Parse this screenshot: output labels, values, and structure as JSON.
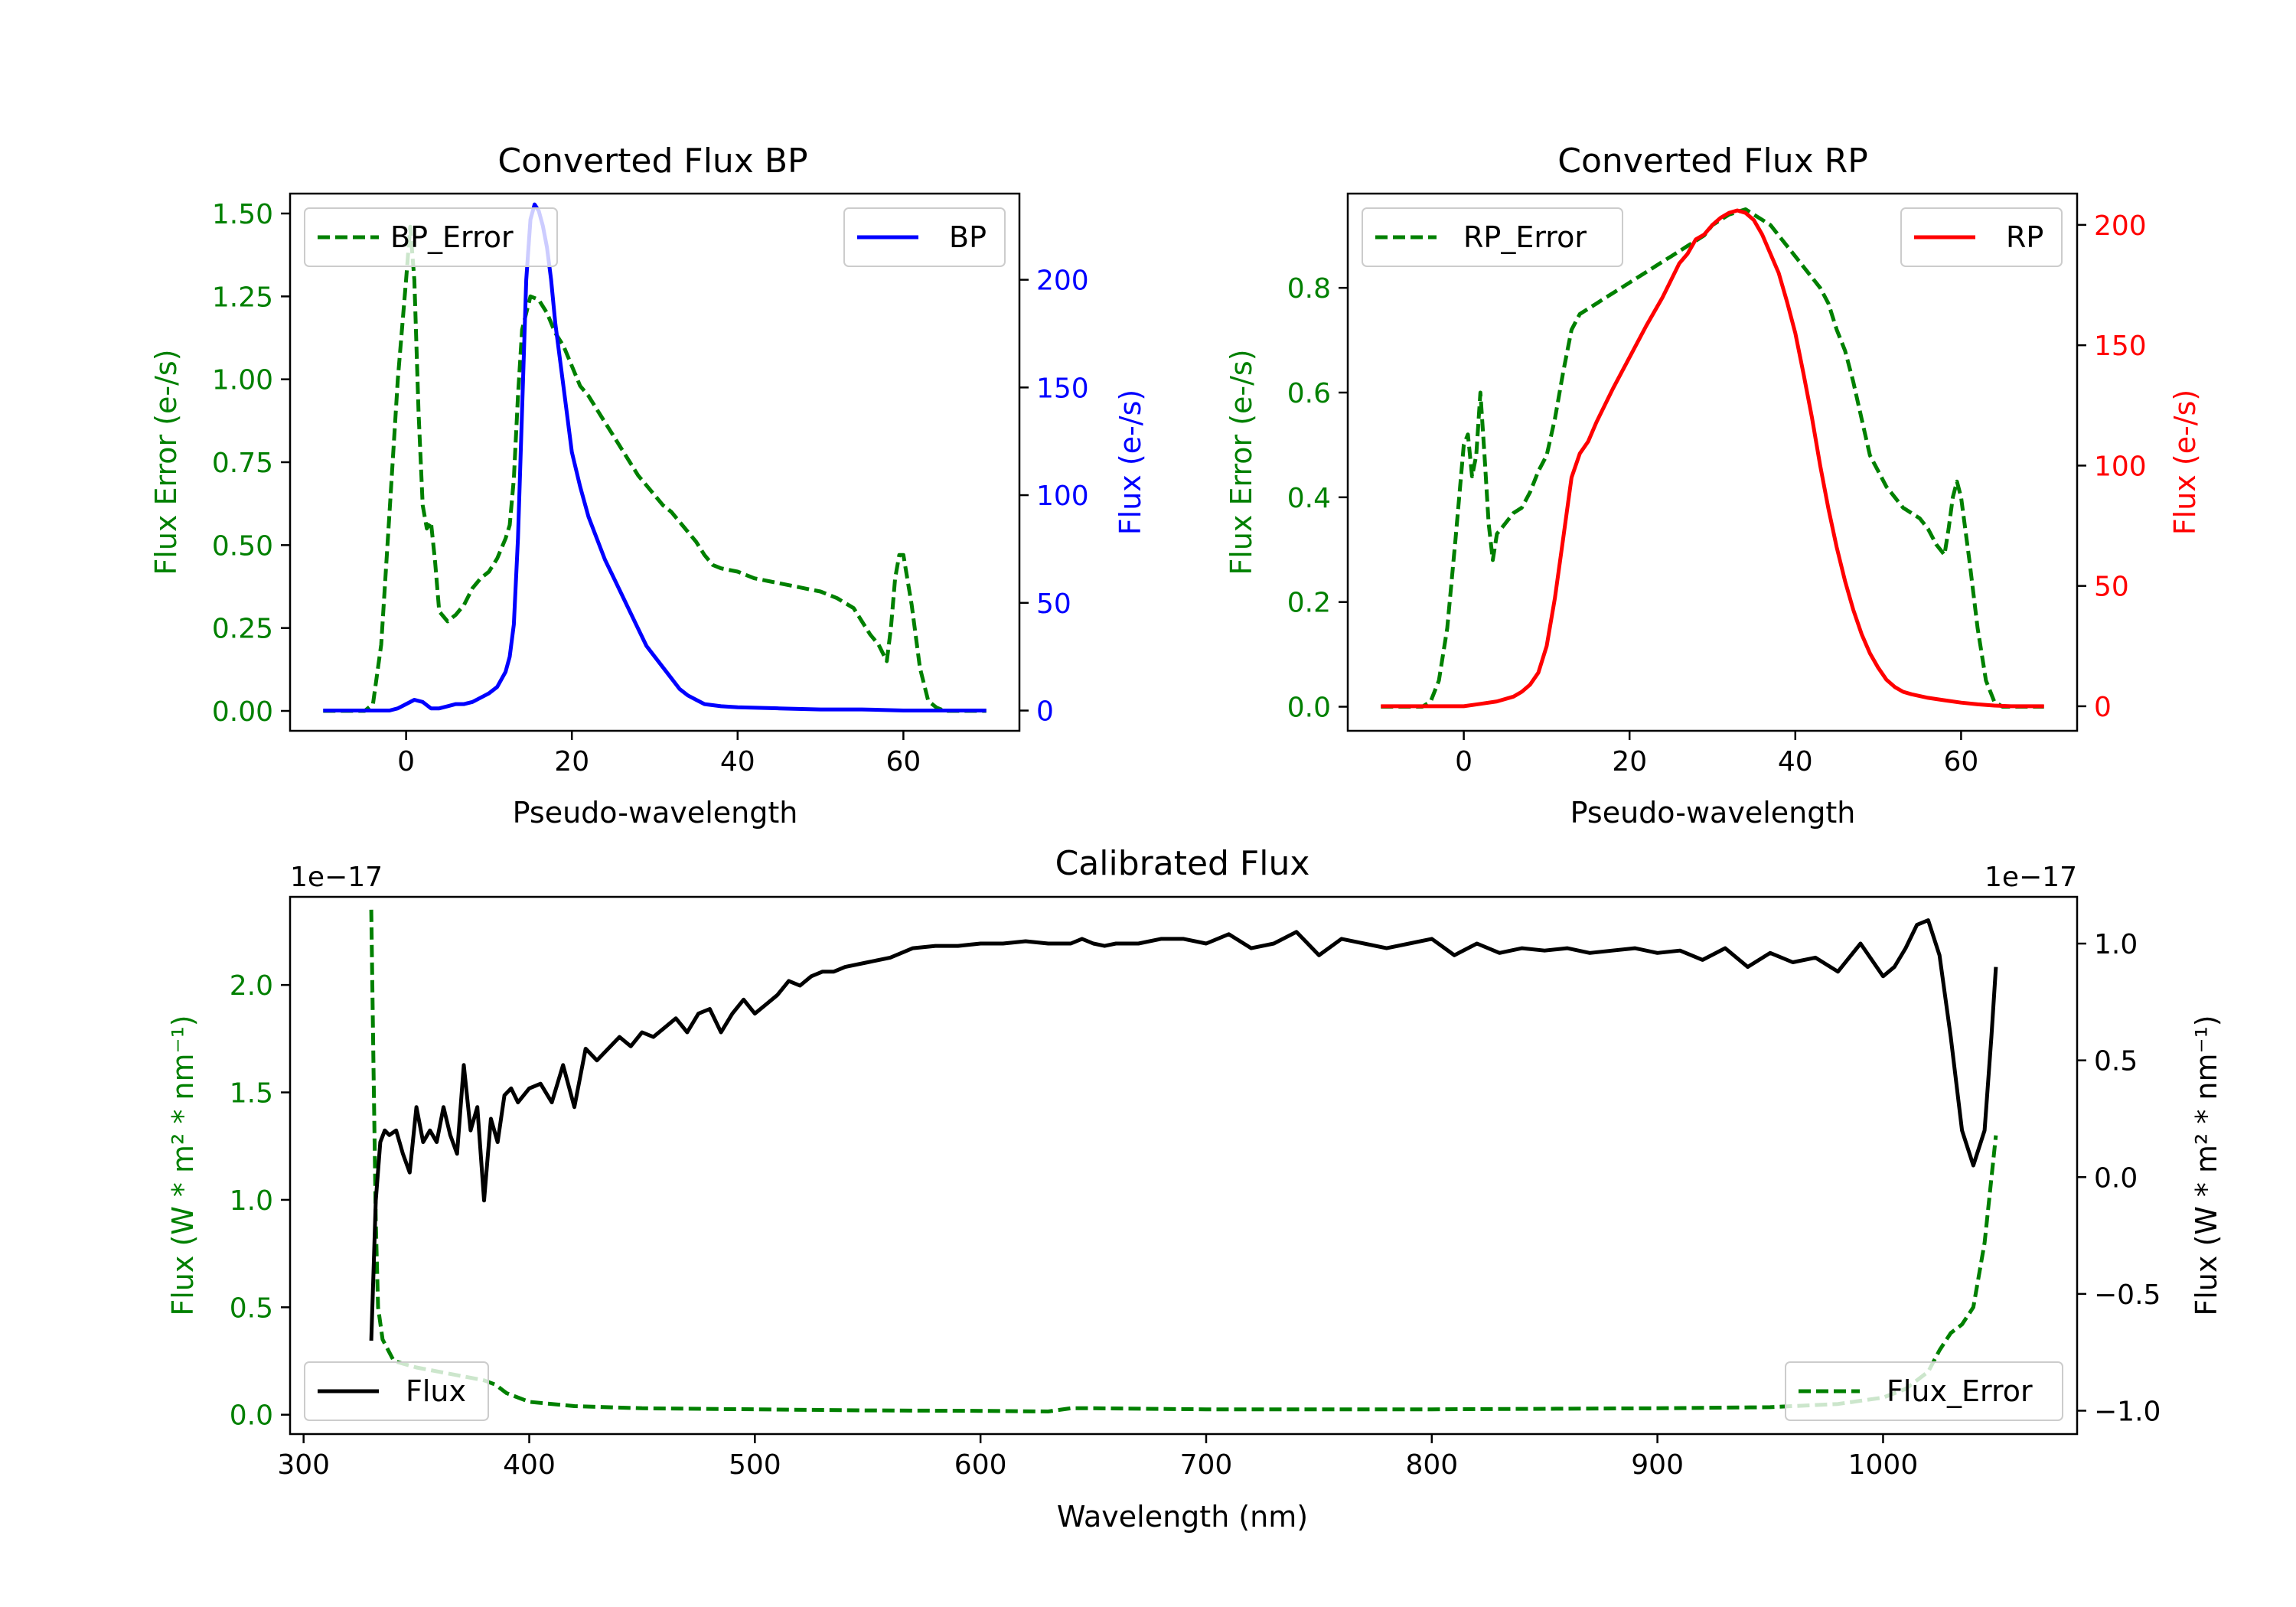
{
  "chart_data": [
    {
      "type": "line",
      "title": "Converted Flux BP",
      "xlabel": "Pseudo-wavelength",
      "ylabel_left": "Flux Error (e-/s)",
      "ylabel_right": "Flux (e-/s)",
      "xlim": [
        -14,
        74
      ],
      "ylim_left": [
        -0.06,
        1.56
      ],
      "ylim_right": [
        -9.4,
        240
      ],
      "xticks": [
        "0",
        "20",
        "40",
        "60"
      ],
      "yticks_left": [
        "0.00",
        "0.25",
        "0.50",
        "0.75",
        "1.00",
        "1.25",
        "1.50"
      ],
      "yticks_right": [
        "0",
        "50",
        "100",
        "150",
        "200"
      ],
      "legend_left": {
        "label": "BP_Error",
        "position": "upper left"
      },
      "legend_right": {
        "label": "BP",
        "position": "upper right"
      },
      "series": [
        {
          "name": "BP_Error",
          "axis": "left",
          "color": "#008000",
          "style": "dashed",
          "x": [
            -10,
            -5,
            -4,
            -3,
            -2,
            -1,
            0,
            0.5,
            1,
            1.5,
            2,
            2.5,
            3,
            3.5,
            4,
            5,
            6,
            7,
            8,
            9,
            10,
            11,
            12,
            12.5,
            13,
            13.5,
            14,
            15,
            16,
            17,
            18,
            19,
            20,
            21,
            22,
            23,
            24,
            25,
            26,
            27,
            28,
            29,
            30,
            31,
            32,
            33,
            34,
            35,
            36,
            37,
            38,
            40,
            41,
            42,
            44,
            46,
            48,
            50,
            52,
            54,
            55,
            56,
            57,
            58,
            58.5,
            59,
            59.5,
            60,
            61,
            62,
            63,
            64,
            65,
            70
          ],
          "y": [
            0,
            0,
            0.02,
            0.2,
            0.6,
            1.0,
            1.3,
            1.46,
            1.3,
            0.9,
            0.62,
            0.55,
            0.57,
            0.45,
            0.3,
            0.27,
            0.29,
            0.32,
            0.37,
            0.4,
            0.42,
            0.46,
            0.52,
            0.56,
            0.7,
            0.95,
            1.15,
            1.25,
            1.24,
            1.2,
            1.14,
            1.1,
            1.04,
            0.98,
            0.95,
            0.91,
            0.87,
            0.83,
            0.79,
            0.75,
            0.71,
            0.68,
            0.65,
            0.62,
            0.6,
            0.57,
            0.54,
            0.51,
            0.47,
            0.44,
            0.43,
            0.42,
            0.41,
            0.4,
            0.39,
            0.38,
            0.37,
            0.36,
            0.34,
            0.31,
            0.27,
            0.23,
            0.2,
            0.15,
            0.25,
            0.4,
            0.47,
            0.47,
            0.32,
            0.13,
            0.03,
            0.01,
            0,
            0
          ]
        },
        {
          "name": "BP",
          "axis": "right",
          "color": "#0000ff",
          "style": "solid",
          "x": [
            -10,
            -2,
            -1,
            0,
            1,
            2,
            3,
            4,
            5,
            6,
            7,
            8,
            9,
            10,
            11,
            12,
            12.5,
            13,
            13.5,
            14,
            14.5,
            15,
            15.5,
            16,
            16.5,
            17,
            17.5,
            18,
            19,
            20,
            21,
            22,
            23,
            24,
            25,
            26,
            27,
            28,
            29,
            30,
            31,
            32,
            33,
            34,
            35,
            36,
            37,
            38,
            40,
            45,
            50,
            55,
            60,
            65,
            70
          ],
          "y": [
            0,
            0,
            1,
            3,
            5,
            4,
            1,
            1,
            2,
            3,
            3,
            4,
            6,
            8,
            11,
            18,
            25,
            40,
            80,
            140,
            200,
            228,
            235,
            232,
            225,
            215,
            200,
            180,
            150,
            120,
            104,
            90,
            80,
            70,
            62,
            54,
            46,
            38,
            30,
            25,
            20,
            15,
            10,
            7,
            5,
            3,
            2.5,
            2,
            1.5,
            1,
            0.5,
            0.5,
            0,
            0,
            0
          ]
        }
      ]
    },
    {
      "type": "line",
      "title": "Converted Flux RP",
      "xlabel": "Pseudo-wavelength",
      "ylabel_left": "Flux Error (e-/s)",
      "ylabel_right": "Flux (e-/s)",
      "xlim": [
        -14,
        74
      ],
      "ylim_left": [
        -0.046,
        0.98
      ],
      "ylim_right": [
        -10.2,
        213
      ],
      "xticks": [
        "0",
        "20",
        "40",
        "60"
      ],
      "yticks_left": [
        "0.0",
        "0.2",
        "0.4",
        "0.6",
        "0.8"
      ],
      "yticks_right": [
        "0",
        "50",
        "100",
        "150",
        "200"
      ],
      "legend_left": {
        "label": "RP_Error",
        "position": "upper left"
      },
      "legend_right": {
        "label": "RP",
        "position": "upper right"
      },
      "series": [
        {
          "name": "RP_Error",
          "axis": "left",
          "color": "#008000",
          "style": "dashed",
          "x": [
            -10,
            -5,
            -4,
            -3,
            -2,
            -1,
            0,
            0.5,
            1,
            1.5,
            2,
            2.5,
            3,
            3.5,
            4,
            5,
            6,
            7,
            8,
            9,
            10,
            11,
            12,
            13,
            14,
            15,
            16,
            17,
            18,
            19,
            20,
            21,
            22,
            23,
            24,
            25,
            26,
            27,
            28,
            29,
            30,
            31,
            32,
            33,
            34,
            35,
            36,
            37,
            38,
            39,
            40,
            41,
            42,
            43,
            44,
            45,
            46,
            47,
            48,
            49,
            50,
            51,
            52,
            53,
            54,
            55,
            56,
            57,
            58,
            58.5,
            59,
            59.5,
            60,
            61,
            62,
            63,
            64,
            65,
            70
          ],
          "y": [
            0,
            0,
            0.01,
            0.05,
            0.15,
            0.32,
            0.5,
            0.52,
            0.44,
            0.48,
            0.6,
            0.48,
            0.35,
            0.28,
            0.33,
            0.35,
            0.37,
            0.38,
            0.41,
            0.45,
            0.48,
            0.55,
            0.64,
            0.72,
            0.75,
            0.76,
            0.77,
            0.78,
            0.79,
            0.8,
            0.81,
            0.82,
            0.83,
            0.84,
            0.85,
            0.86,
            0.87,
            0.88,
            0.89,
            0.9,
            0.92,
            0.93,
            0.94,
            0.945,
            0.95,
            0.94,
            0.93,
            0.92,
            0.9,
            0.88,
            0.86,
            0.84,
            0.82,
            0.8,
            0.77,
            0.72,
            0.68,
            0.62,
            0.55,
            0.48,
            0.45,
            0.42,
            0.4,
            0.38,
            0.37,
            0.36,
            0.34,
            0.31,
            0.29,
            0.34,
            0.4,
            0.43,
            0.4,
            0.28,
            0.15,
            0.05,
            0.01,
            0,
            0
          ]
        },
        {
          "name": "RP",
          "axis": "right",
          "color": "#ff0000",
          "style": "solid",
          "x": [
            -10,
            -5,
            -2,
            0,
            2,
            4,
            6,
            7,
            8,
            9,
            10,
            11,
            12,
            13,
            14,
            15,
            16,
            18,
            20,
            22,
            24,
            26,
            27,
            28,
            29,
            30,
            31,
            32,
            33,
            34,
            35,
            36,
            37,
            38,
            39,
            40,
            41,
            42,
            43,
            44,
            45,
            46,
            47,
            48,
            49,
            50,
            51,
            52,
            53,
            54,
            56,
            58,
            60,
            62,
            64,
            66,
            70
          ],
          "y": [
            0,
            0,
            0,
            0,
            1,
            2,
            4,
            6,
            9,
            14,
            25,
            45,
            70,
            95,
            105,
            110,
            118,
            132,
            145,
            158,
            170,
            184,
            188,
            194,
            196,
            200,
            203,
            205,
            206,
            205,
            202,
            196,
            188,
            180,
            168,
            155,
            138,
            120,
            100,
            82,
            66,
            52,
            40,
            30,
            22,
            16,
            11,
            8,
            6,
            5,
            3.5,
            2.5,
            1.5,
            0.8,
            0.3,
            0,
            0
          ]
        }
      ]
    },
    {
      "type": "line",
      "title": "Calibrated Flux",
      "xlabel": "Wavelength (nm)",
      "ylabel_left": "Flux (W * m² * nm⁻¹)",
      "ylabel_right": "Flux (W * m² * nm⁻¹)",
      "offset_left": "1e−17",
      "offset_right": "1e−17",
      "xlim": [
        294,
        1086
      ],
      "ylim_left": [
        -0.09,
        2.41
      ],
      "ylim_right": [
        -1.1,
        1.2
      ],
      "xticks": [
        "300",
        "400",
        "500",
        "600",
        "700",
        "800",
        "900",
        "1000"
      ],
      "yticks_left": [
        "0.0",
        "0.5",
        "1.0",
        "1.5",
        "2.0"
      ],
      "yticks_right": [
        "−1.0",
        "−0.5",
        "0.0",
        "0.5",
        "1.0"
      ],
      "legend_left": {
        "label": "Flux",
        "position": "lower left"
      },
      "legend_right": {
        "label": "Flux_Error",
        "position": "lower right"
      },
      "series": [
        {
          "name": "Flux_Error",
          "axis": "left",
          "color": "#008000",
          "style": "dashed",
          "x": [
            330,
            331,
            332,
            333,
            335,
            340,
            350,
            360,
            370,
            380,
            385,
            390,
            400,
            420,
            450,
            500,
            550,
            600,
            630,
            640,
            650,
            700,
            800,
            900,
            950,
            980,
            1000,
            1010,
            1020,
            1025,
            1030,
            1035,
            1040,
            1045,
            1048,
            1050
          ],
          "y": [
            2.35,
            1.6,
            0.9,
            0.5,
            0.35,
            0.25,
            0.22,
            0.2,
            0.18,
            0.16,
            0.14,
            0.1,
            0.06,
            0.04,
            0.03,
            0.025,
            0.02,
            0.018,
            0.015,
            0.03,
            0.03,
            0.025,
            0.025,
            0.03,
            0.035,
            0.05,
            0.08,
            0.12,
            0.2,
            0.3,
            0.38,
            0.42,
            0.5,
            0.8,
            1.1,
            1.3
          ]
        },
        {
          "name": "Flux",
          "axis": "right",
          "color": "#000000",
          "style": "solid",
          "x": [
            330,
            331,
            332,
            334,
            336,
            338,
            341,
            344,
            347,
            350,
            353,
            356,
            359,
            362,
            365,
            368,
            371,
            374,
            377,
            380,
            383,
            386,
            389,
            392,
            395,
            400,
            405,
            410,
            415,
            420,
            425,
            430,
            435,
            440,
            445,
            450,
            455,
            460,
            465,
            470,
            475,
            480,
            485,
            490,
            495,
            500,
            505,
            510,
            515,
            520,
            525,
            530,
            535,
            540,
            550,
            560,
            570,
            580,
            590,
            600,
            610,
            620,
            630,
            640,
            645,
            650,
            655,
            660,
            670,
            680,
            690,
            700,
            710,
            720,
            730,
            740,
            750,
            760,
            770,
            780,
            790,
            800,
            810,
            820,
            830,
            840,
            850,
            860,
            870,
            880,
            890,
            900,
            910,
            920,
            930,
            940,
            950,
            960,
            970,
            980,
            990,
            1000,
            1005,
            1010,
            1015,
            1020,
            1025,
            1030,
            1035,
            1040,
            1045,
            1048,
            1050
          ],
          "y": [
            -0.7,
            -0.4,
            -0.1,
            0.15,
            0.2,
            0.18,
            0.2,
            0.1,
            0.02,
            0.3,
            0.15,
            0.2,
            0.15,
            0.3,
            0.18,
            0.1,
            0.48,
            0.2,
            0.3,
            -0.1,
            0.25,
            0.15,
            0.35,
            0.38,
            0.32,
            0.38,
            0.4,
            0.32,
            0.48,
            0.3,
            0.55,
            0.5,
            0.55,
            0.6,
            0.56,
            0.62,
            0.6,
            0.64,
            0.68,
            0.62,
            0.7,
            0.72,
            0.62,
            0.7,
            0.76,
            0.7,
            0.74,
            0.78,
            0.84,
            0.82,
            0.86,
            0.88,
            0.88,
            0.9,
            0.92,
            0.94,
            0.98,
            0.99,
            0.99,
            1.0,
            1.0,
            1.01,
            1.0,
            1.0,
            1.02,
            1.0,
            0.99,
            1.0,
            1.0,
            1.02,
            1.02,
            1.0,
            1.04,
            0.98,
            1.0,
            1.05,
            0.95,
            1.02,
            1.0,
            0.98,
            1.0,
            1.02,
            0.95,
            1.0,
            0.96,
            0.98,
            0.97,
            0.98,
            0.96,
            0.97,
            0.98,
            0.96,
            0.97,
            0.93,
            0.98,
            0.9,
            0.96,
            0.92,
            0.94,
            0.88,
            1.0,
            0.86,
            0.9,
            0.98,
            1.08,
            1.1,
            0.95,
            0.6,
            0.2,
            0.05,
            0.2,
            0.6,
            0.9
          ]
        }
      ]
    }
  ]
}
